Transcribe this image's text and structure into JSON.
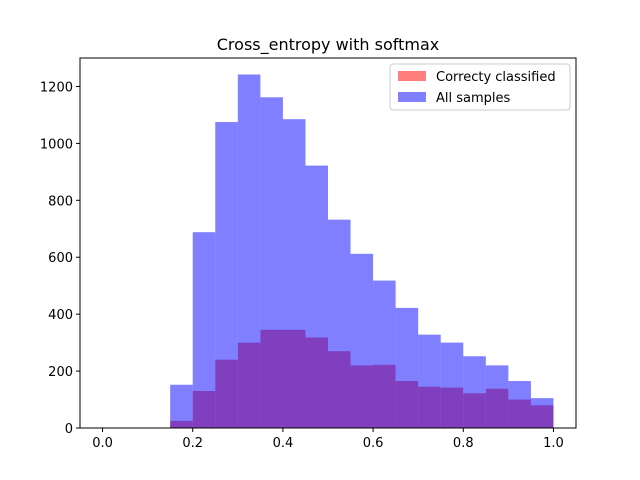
{
  "chart_data": {
    "type": "bar",
    "title": "Cross_entropy with softmax",
    "xlabel": "",
    "ylabel": "",
    "xlim": [
      -0.05,
      1.05
    ],
    "ylim": [
      0,
      1300
    ],
    "x_ticks": [
      0.0,
      0.2,
      0.4,
      0.6,
      0.8,
      1.0
    ],
    "x_tick_labels": [
      "0.0",
      "0.2",
      "0.4",
      "0.6",
      "0.8",
      "1.0"
    ],
    "y_ticks": [
      0,
      200,
      400,
      600,
      800,
      1000,
      1200
    ],
    "y_tick_labels": [
      "0",
      "200",
      "400",
      "600",
      "800",
      "1000",
      "1200"
    ],
    "bin_edges": [
      0.15,
      0.2,
      0.25,
      0.3,
      0.35,
      0.4,
      0.45,
      0.5,
      0.55,
      0.6,
      0.65,
      0.7,
      0.75,
      0.8,
      0.85,
      0.9,
      0.95,
      1.0
    ],
    "series": [
      {
        "name": "Correcty classified",
        "color": "#ff0000",
        "alpha": 0.5,
        "values": [
          25,
          130,
          240,
          300,
          345,
          345,
          318,
          270,
          220,
          222,
          165,
          145,
          142,
          122,
          138,
          100,
          80
        ]
      },
      {
        "name": "All samples",
        "color": "#0000ff",
        "alpha": 0.5,
        "values": [
          152,
          688,
          1075,
          1242,
          1162,
          1085,
          922,
          732,
          612,
          518,
          422,
          328,
          300,
          252,
          220,
          165,
          105
        ]
      }
    ],
    "legend_position": "top-right",
    "grid": false
  }
}
